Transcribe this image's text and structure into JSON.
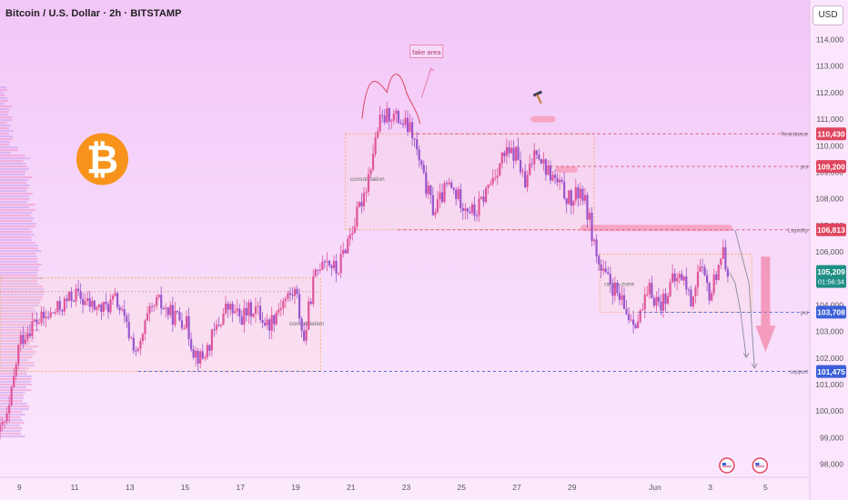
{
  "header": {
    "title": "Bitcoin / U.S. Dollar · 2h · BITSTAMP",
    "currency_button": "USD"
  },
  "colors": {
    "bull": "#e0559a",
    "bear": "#9a55cc",
    "zone_border": "#f3a65f",
    "resistance": "#d44a6a",
    "support": "#3b5fd9",
    "highlight": "#f7a1c0",
    "logo": "#f7931a"
  },
  "icons": [
    "bitcoin-logo-icon",
    "hammer-icon",
    "us-flag-event-icon",
    "down-arrow-icon"
  ],
  "chart_data": {
    "type": "candlestick",
    "symbol": "Bitcoin / U.S. Dollar",
    "interval": "2h",
    "exchange": "BITSTAMP",
    "ylim": [
      97500,
      115000
    ],
    "y_ticks": [
      98000,
      99000,
      100000,
      101000,
      102000,
      103000,
      104000,
      105000,
      106000,
      107000,
      108000,
      109000,
      110000,
      111000,
      112000,
      113000,
      114000
    ],
    "y_tick_labels": [
      "98,000",
      "99,000",
      "100,000",
      "101,000",
      "102,000",
      "103,000",
      "104,000",
      "105,000",
      "106,000",
      "107,000",
      "108,000",
      "109,000",
      "110,000",
      "111,000",
      "112,000",
      "113,000",
      "114,000"
    ],
    "x_ticks": [
      {
        "label": "9",
        "day": 9
      },
      {
        "label": "11",
        "day": 11
      },
      {
        "label": "13",
        "day": 13
      },
      {
        "label": "15",
        "day": 15
      },
      {
        "label": "17",
        "day": 17
      },
      {
        "label": "19",
        "day": 19
      },
      {
        "label": "21",
        "day": 21
      },
      {
        "label": "23",
        "day": 23
      },
      {
        "label": "25",
        "day": 25
      },
      {
        "label": "27",
        "day": 27
      },
      {
        "label": "29",
        "day": 29
      },
      {
        "label": "Jun",
        "day": 32
      },
      {
        "label": "3",
        "day": 34
      },
      {
        "label": "5",
        "day": 36
      }
    ],
    "x_range_days": [
      8.3,
      37.6
    ],
    "price_path": [
      [
        8.3,
        99200
      ],
      [
        8.6,
        99800
      ],
      [
        9.0,
        102600
      ],
      [
        9.5,
        103300
      ],
      [
        10.0,
        103500
      ],
      [
        10.5,
        103900
      ],
      [
        11.0,
        104400
      ],
      [
        11.5,
        104000
      ],
      [
        12.0,
        103800
      ],
      [
        12.5,
        104200
      ],
      [
        13.0,
        102800
      ],
      [
        13.3,
        102100
      ],
      [
        13.6,
        103400
      ],
      [
        14.0,
        104100
      ],
      [
        14.5,
        103600
      ],
      [
        15.0,
        103400
      ],
      [
        15.3,
        102300
      ],
      [
        15.6,
        101900
      ],
      [
        16.0,
        102800
      ],
      [
        16.5,
        103900
      ],
      [
        17.0,
        103500
      ],
      [
        17.5,
        103900
      ],
      [
        18.0,
        103200
      ],
      [
        18.5,
        104100
      ],
      [
        19.0,
        104500
      ],
      [
        19.3,
        102600
      ],
      [
        19.6,
        104700
      ],
      [
        20.0,
        105900
      ],
      [
        20.5,
        105200
      ],
      [
        20.8,
        106200
      ],
      [
        21.2,
        107300
      ],
      [
        21.6,
        108700
      ],
      [
        22.0,
        110800
      ],
      [
        22.4,
        111200
      ],
      [
        22.8,
        110900
      ],
      [
        23.2,
        110500
      ],
      [
        23.6,
        108800
      ],
      [
        24.0,
        107500
      ],
      [
        24.5,
        108500
      ],
      [
        25.0,
        107900
      ],
      [
        25.5,
        107400
      ],
      [
        26.0,
        108500
      ],
      [
        26.5,
        109600
      ],
      [
        27.0,
        109700
      ],
      [
        27.3,
        108400
      ],
      [
        27.7,
        110000
      ],
      [
        28.0,
        109200
      ],
      [
        28.5,
        108500
      ],
      [
        29.0,
        107800
      ],
      [
        29.3,
        108400
      ],
      [
        29.6,
        107300
      ],
      [
        30.0,
        105300
      ],
      [
        30.5,
        104600
      ],
      [
        31.0,
        103600
      ],
      [
        31.4,
        103400
      ],
      [
        31.8,
        104500
      ],
      [
        32.2,
        104000
      ],
      [
        32.6,
        104800
      ],
      [
        33.0,
        105100
      ],
      [
        33.3,
        104100
      ],
      [
        33.6,
        105400
      ],
      [
        34.0,
        104300
      ],
      [
        34.4,
        106000
      ],
      [
        34.7,
        105209
      ]
    ],
    "annotations": {
      "price_labels": [
        {
          "text": "110,430",
          "price": 110430,
          "color": "#e0455f"
        },
        {
          "text": "109,200",
          "price": 109200,
          "color": "#e0455f"
        },
        {
          "text": "106,813",
          "price": 106813,
          "color": "#e0455f"
        },
        {
          "text": "103,708",
          "price": 103708,
          "color": "#3b5fd9"
        },
        {
          "text": "101,475",
          "price": 101475,
          "color": "#3b5fd9"
        }
      ],
      "current_price": {
        "text": "105,209",
        "countdown": "01:56:34",
        "price": 105209,
        "color": "#1f8f86"
      },
      "levels": [
        {
          "label": "Resistance",
          "price": 110430,
          "from_day": 23.2,
          "kind": "resistance"
        },
        {
          "label": "poi",
          "price": 109200,
          "from_day": 28.2,
          "kind": "resistance"
        },
        {
          "label": "Liquidity",
          "price": 106813,
          "from_day": 22.7,
          "kind": "resistance"
        },
        {
          "label": "poi",
          "price": 103708,
          "from_day": 31.4,
          "kind": "support"
        },
        {
          "label": "support",
          "price": 101475,
          "from_day": 13.3,
          "kind": "support"
        }
      ],
      "zones": [
        {
          "label": "consolidation",
          "x0": 20.8,
          "x1": 29.8,
          "y0": 106813,
          "y1": 110430
        },
        {
          "label": "consolidation",
          "x0": 8.3,
          "x1": 19.9,
          "y0": 101475,
          "y1": 105000
        },
        {
          "label": "range-zone",
          "x0": 30.0,
          "x1": 35.5,
          "y0": 103708,
          "y1": 105900
        }
      ],
      "text_notes": [
        {
          "text": "fake area",
          "day": 23.7,
          "price": 113500
        }
      ]
    }
  }
}
